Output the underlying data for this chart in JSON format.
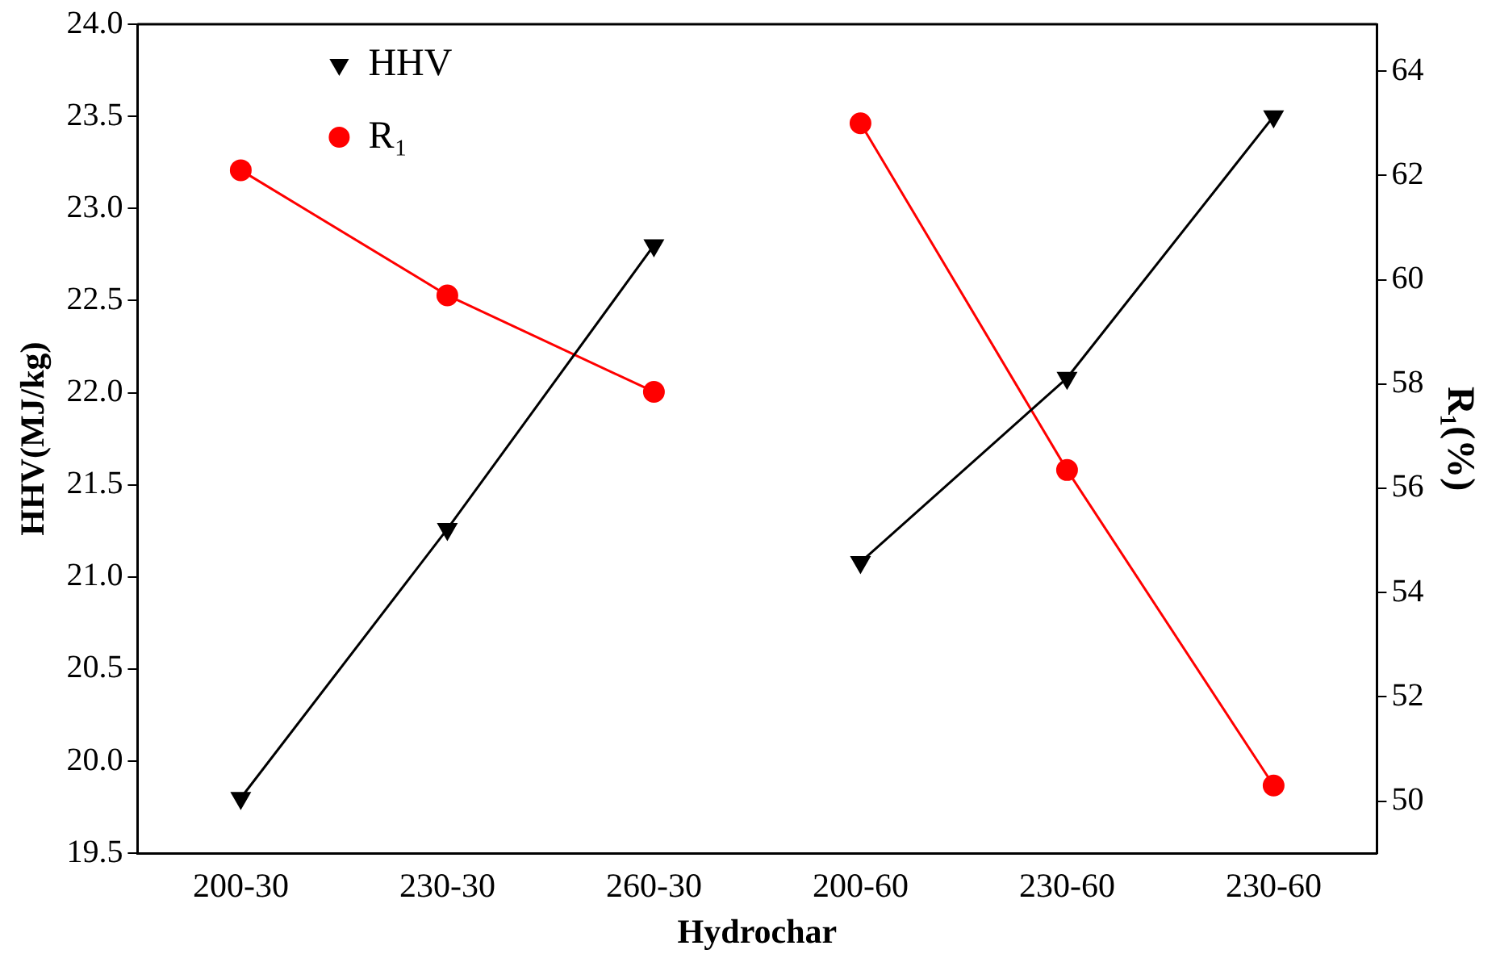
{
  "chart_data": {
    "type": "line",
    "xlabel": "Hydrochar",
    "ylabel": "HHV(MJ/kg)",
    "y2label": "R₁(%)",
    "categories": [
      "200-30",
      "230-30",
      "260-30",
      "200-60",
      "230-60",
      "230-60"
    ],
    "series": [
      {
        "name": "HHV",
        "color": "#000000",
        "marker": "triangle-down",
        "values": [
          19.8,
          21.26,
          22.8,
          null,
          null,
          null
        ]
      },
      {
        "color": "#000000",
        "marker": "triangle-down",
        "values": [
          null,
          null,
          null,
          21.08,
          22.08,
          23.5
        ]
      },
      {
        "name": "R₁",
        "color": "#ff0000",
        "marker": "circle",
        "axis": "y2",
        "values": [
          62.1,
          59.7,
          57.85,
          null,
          null,
          null
        ]
      },
      {
        "color": "#ff0000",
        "marker": "circle",
        "axis": "y2",
        "values": [
          null,
          null,
          null,
          63.0,
          56.35,
          50.3
        ]
      }
    ],
    "ylim": [
      19.5,
      24.0
    ],
    "yticks": [
      {
        "value": 19.5,
        "label": "19.5"
      },
      {
        "value": 20,
        "label": "20.0"
      },
      {
        "value": 20.5,
        "label": "20.5"
      },
      {
        "value": 21,
        "label": "21.0"
      },
      {
        "value": 21.5,
        "label": "21.5"
      },
      {
        "value": 22,
        "label": "22.0"
      },
      {
        "value": 22.5,
        "label": "22.5"
      },
      {
        "value": 23,
        "label": "23.0"
      },
      {
        "value": 23.5,
        "label": "23.5"
      },
      {
        "value": 24,
        "label": "24.0"
      }
    ],
    "y2lim": [
      49.0,
      64.9
    ],
    "y2ticks": [
      50,
      52,
      54,
      56,
      58,
      60,
      62,
      64
    ],
    "grid": false,
    "legend": "top left",
    "line_style": "solid"
  }
}
